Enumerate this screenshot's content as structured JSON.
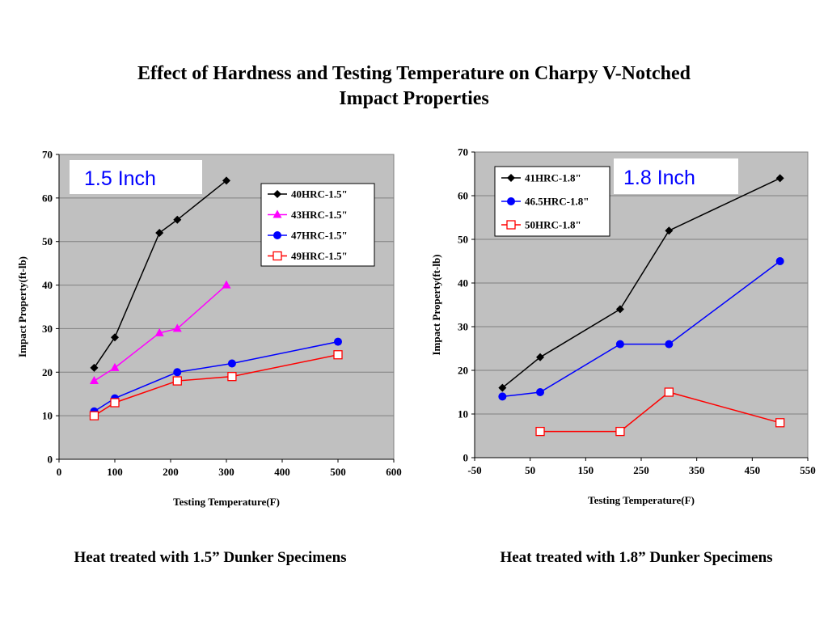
{
  "title": {
    "line1": "Effect of Hardness and Testing Temperature on Charpy V-Notched",
    "line2": "Impact Properties"
  },
  "captions": {
    "left": "Heat treated with 1.5” Dunker Specimens",
    "right": "Heat treated with 1.8” Dunker Specimens"
  },
  "colors": {
    "plot_background": "#c0c0c0",
    "gridline": "#808080",
    "black_series": "#000000",
    "magenta_series": "#ff00ff",
    "blue_series": "#0000ff",
    "red_series": "#ff0000",
    "size_label": "#0000ff"
  },
  "chart_data": [
    {
      "type": "line",
      "size_label": "1.5  Inch",
      "xlabel": "Testing Temperature(F)",
      "ylabel": "Impact Property(ft-lb)",
      "xlim": [
        0,
        600
      ],
      "ylim": [
        0,
        70
      ],
      "xticks": [
        0,
        100,
        200,
        300,
        400,
        500,
        600
      ],
      "yticks": [
        0,
        10,
        20,
        30,
        40,
        50,
        60,
        70
      ],
      "grid": "horizontal",
      "legend_position": "top-right",
      "series": [
        {
          "name": "40HRC-1.5\"",
          "color": "#000000",
          "marker": "diamond",
          "x": [
            63,
            100,
            180,
            212,
            300
          ],
          "y": [
            21,
            28,
            52,
            55,
            64
          ]
        },
        {
          "name": "43HRC-1.5\"",
          "color": "#ff00ff",
          "marker": "triangle",
          "x": [
            63,
            100,
            180,
            212,
            300
          ],
          "y": [
            18,
            21,
            29,
            30,
            40
          ]
        },
        {
          "name": "47HRC-1.5\"",
          "color": "#0000ff",
          "marker": "circle",
          "x": [
            63,
            100,
            212,
            310,
            500
          ],
          "y": [
            11,
            14,
            20,
            22,
            27
          ]
        },
        {
          "name": "49HRC-1.5\"",
          "color": "#ff0000",
          "marker": "open-square",
          "x": [
            63,
            100,
            212,
            310,
            500
          ],
          "y": [
            10,
            13,
            18,
            19,
            24
          ]
        }
      ]
    },
    {
      "type": "line",
      "size_label": "1.8  Inch",
      "xlabel": "Testing Temperature(F)",
      "ylabel": "Impact Property(ft-lb)",
      "xlim": [
        -50,
        550
      ],
      "ylim": [
        0,
        70
      ],
      "xticks": [
        -50,
        50,
        150,
        250,
        350,
        450,
        550
      ],
      "yticks": [
        0,
        10,
        20,
        30,
        40,
        50,
        60,
        70
      ],
      "grid": "horizontal",
      "legend_position": "top-left",
      "series": [
        {
          "name": "41HRC-1.8\"",
          "color": "#000000",
          "marker": "diamond",
          "x": [
            0,
            68,
            212,
            300,
            500
          ],
          "y": [
            16,
            23,
            34,
            52,
            64
          ]
        },
        {
          "name": "46.5HRC-1.8\"",
          "color": "#0000ff",
          "marker": "circle",
          "x": [
            0,
            68,
            212,
            300,
            500
          ],
          "y": [
            14,
            15,
            26,
            26,
            45
          ]
        },
        {
          "name": "50HRC-1.8\"",
          "color": "#ff0000",
          "marker": "open-square",
          "x": [
            68,
            212,
            300,
            500
          ],
          "y": [
            6,
            6,
            15,
            8
          ]
        }
      ]
    }
  ]
}
